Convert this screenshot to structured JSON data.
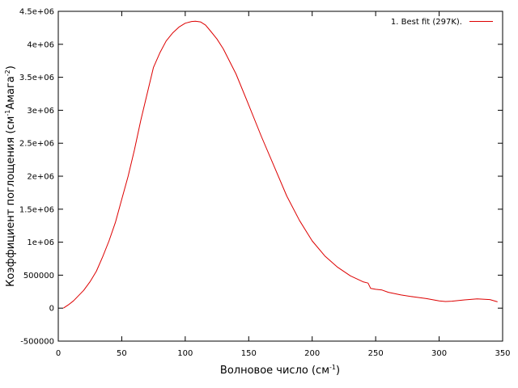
{
  "chart_data": {
    "type": "line",
    "xlabel": {
      "text": "Волновое число (см",
      "sup": "-1",
      "tail": ")"
    },
    "ylabel": {
      "text": "Коэффициент поглощения (см",
      "sup1": "-1",
      "mid": "Амага",
      "sup2": "-2",
      "tail": ")"
    },
    "xlim": [
      0,
      350
    ],
    "ylim": [
      -500000,
      4500000
    ],
    "xticks": [
      0,
      50,
      100,
      150,
      200,
      250,
      300,
      350
    ],
    "xtick_labels": [
      "0",
      "50",
      "100",
      "150",
      "200",
      "250",
      "300",
      "350"
    ],
    "yticks": [
      -500000,
      0,
      500000,
      1000000,
      1500000,
      2000000,
      2500000,
      3000000,
      3500000,
      4000000,
      4500000
    ],
    "ytick_labels": [
      "-500000",
      "0",
      "500000",
      "1e+06",
      "1.5e+06",
      "2e+06",
      "2.5e+06",
      "3e+06",
      "3.5e+06",
      "4e+06",
      "4.5e+06"
    ],
    "grid": false,
    "legend_position": "top-right",
    "colors": {
      "series": "#dd0000",
      "axis": "#000000"
    },
    "series": [
      {
        "name": "1. Best fit (297K).",
        "x": [
          4,
          8,
          12,
          16,
          20,
          25,
          30,
          35,
          40,
          45,
          50,
          55,
          60,
          65,
          70,
          75,
          80,
          85,
          90,
          95,
          100,
          105,
          108,
          112,
          116,
          120,
          125,
          130,
          140,
          150,
          160,
          170,
          180,
          190,
          200,
          210,
          220,
          230,
          240,
          244,
          246,
          250,
          255,
          260,
          270,
          280,
          290,
          300,
          305,
          310,
          320,
          330,
          340,
          346
        ],
        "y": [
          0,
          50000,
          110000,
          190000,
          270000,
          400000,
          560000,
          780000,
          1020000,
          1300000,
          1650000,
          2000000,
          2400000,
          2850000,
          3250000,
          3650000,
          3870000,
          4050000,
          4170000,
          4260000,
          4320000,
          4345000,
          4350000,
          4340000,
          4290000,
          4200000,
          4080000,
          3930000,
          3550000,
          3080000,
          2600000,
          2150000,
          1700000,
          1330000,
          1020000,
          790000,
          620000,
          490000,
          400000,
          380000,
          300000,
          285000,
          275000,
          240000,
          200000,
          170000,
          145000,
          110000,
          100000,
          105000,
          125000,
          140000,
          130000,
          95000
        ]
      }
    ]
  }
}
